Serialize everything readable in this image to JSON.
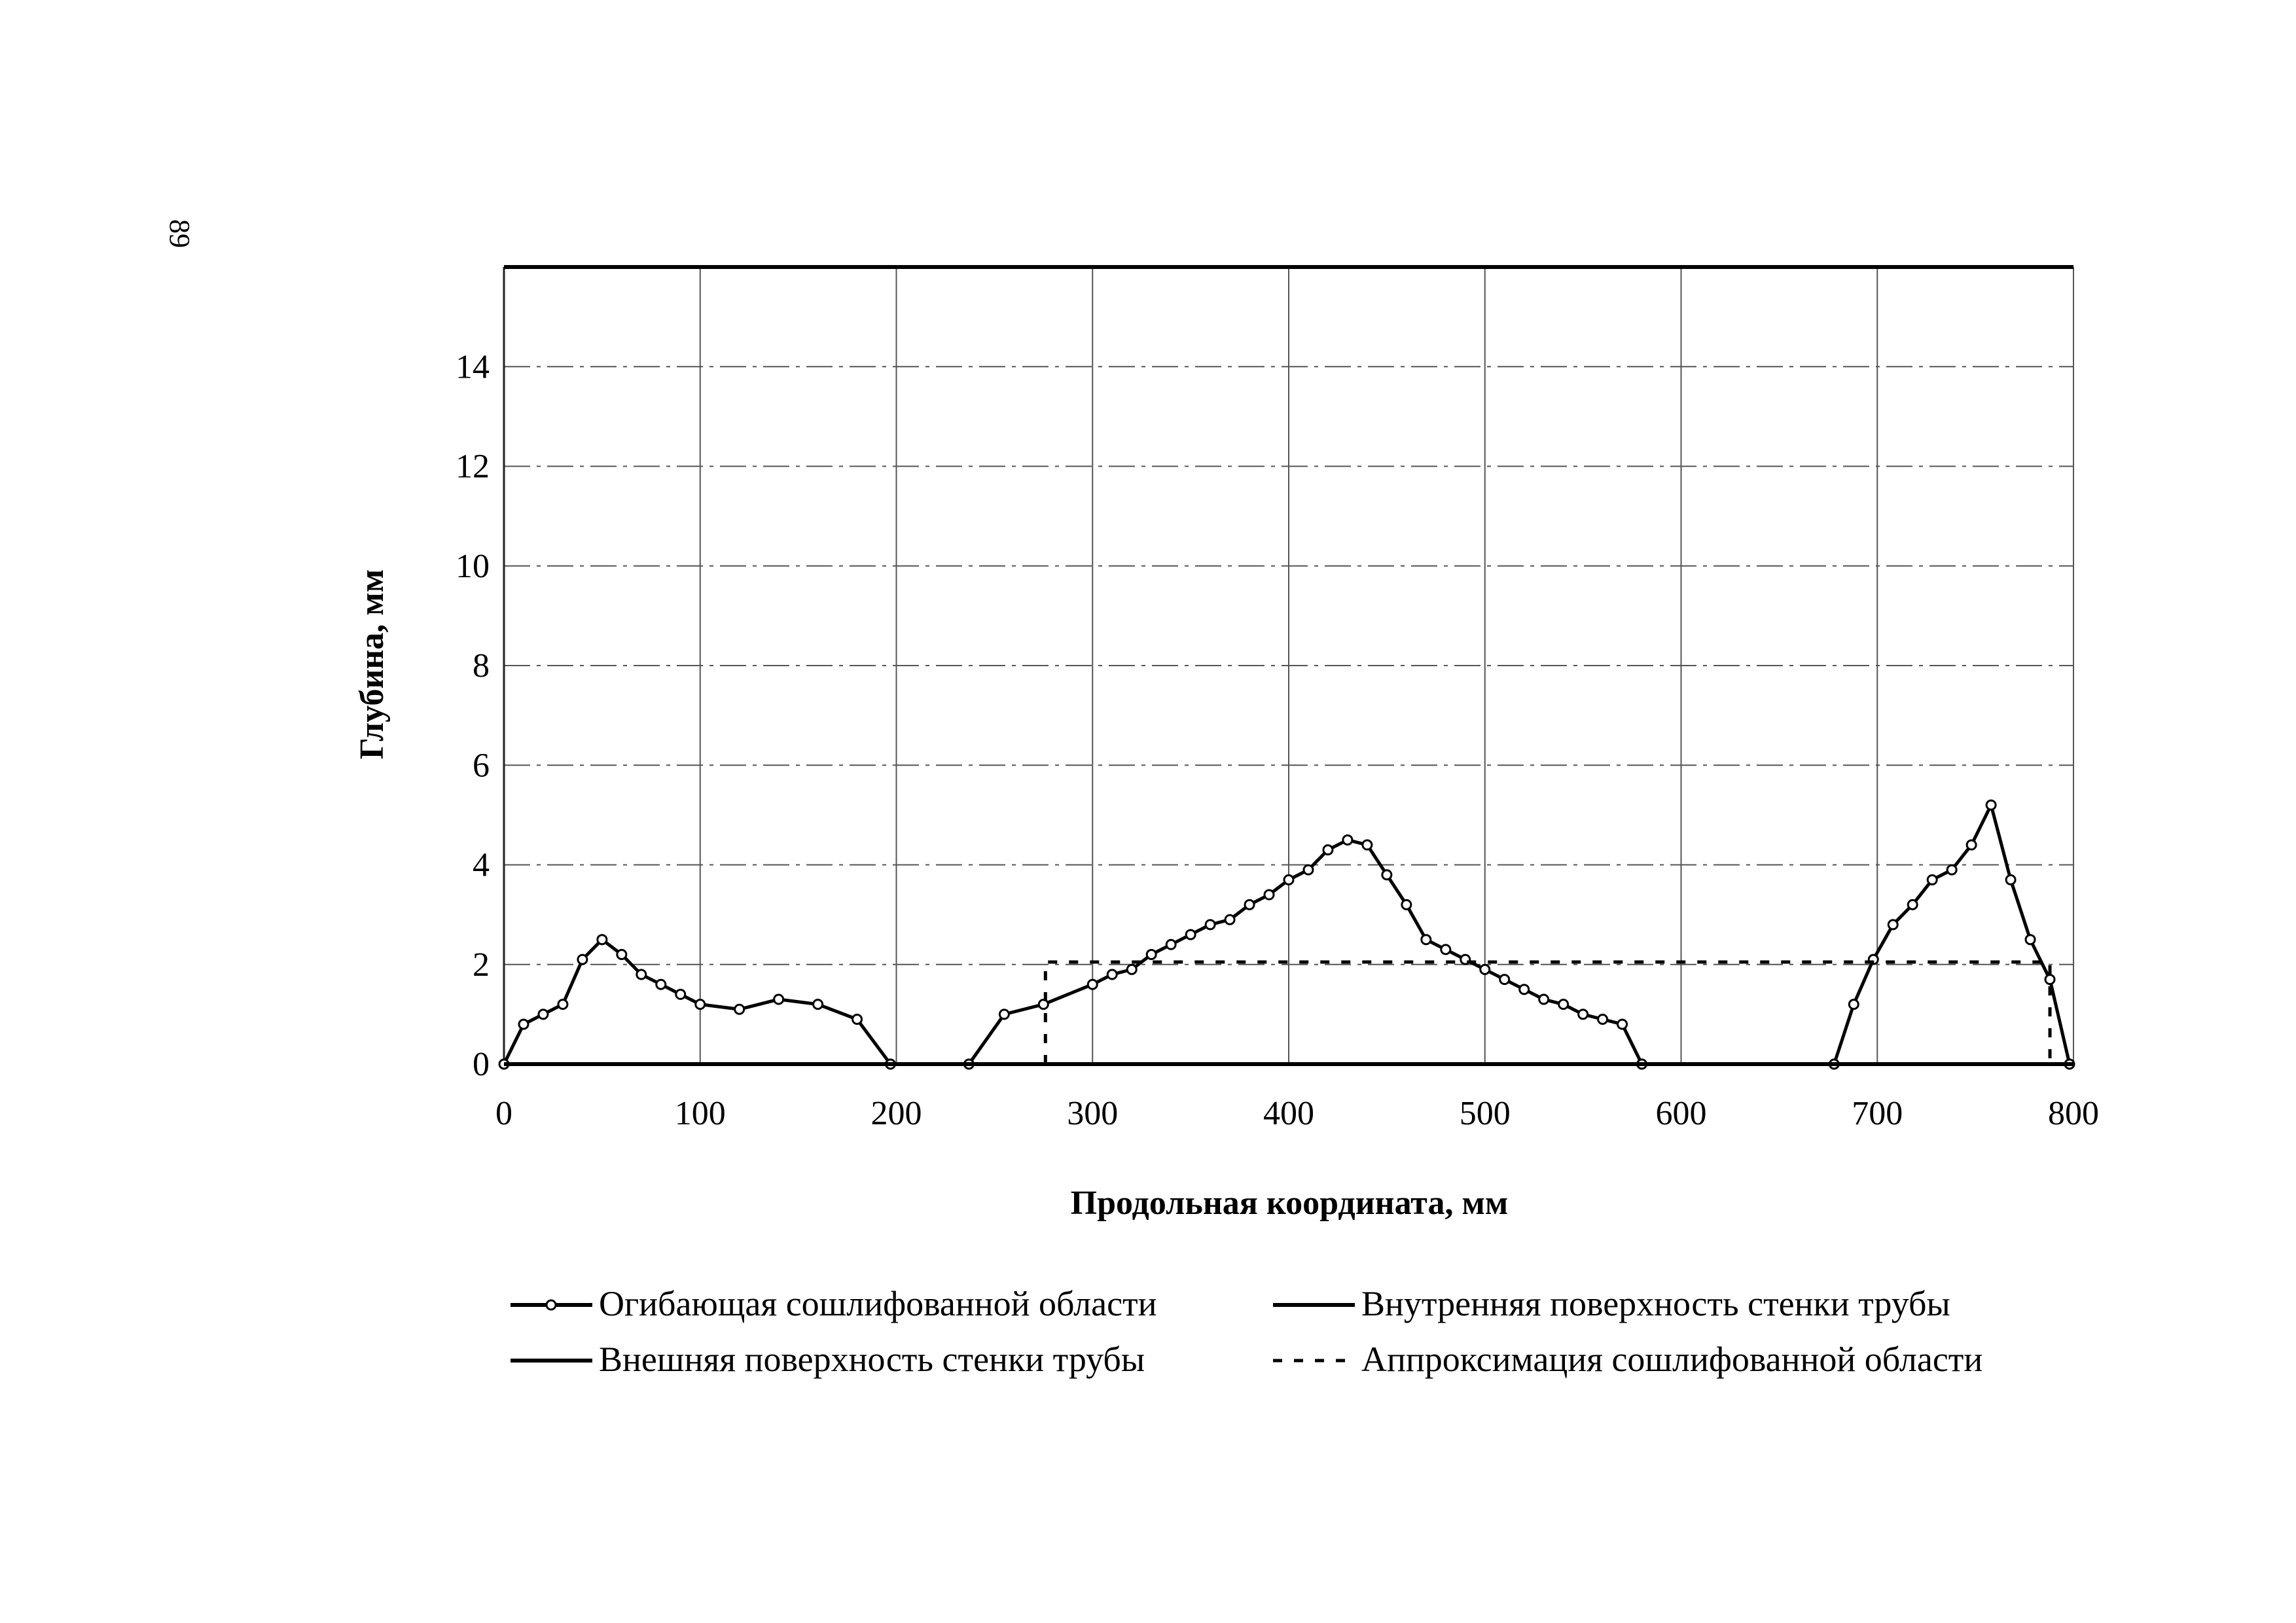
{
  "page_number": "89",
  "chart_data": {
    "type": "line",
    "xlabel": "Продольная координата, мм",
    "ylabel": "Глубина, мм",
    "xlim": [
      0,
      800
    ],
    "ylim": [
      0,
      16
    ],
    "x_ticks": [
      "0",
      "100",
      "200",
      "300",
      "400",
      "500",
      "600",
      "700",
      "800"
    ],
    "y_ticks": [
      "0",
      "2",
      "4",
      "6",
      "8",
      "10",
      "12",
      "14"
    ],
    "grid": true,
    "legend_position": "bottom",
    "series": [
      {
        "name": "Огибающая сошлифованной области",
        "style": "solid-markers",
        "color": "#000000",
        "segments": [
          [
            [
              0,
              0
            ],
            [
              10,
              0.8
            ],
            [
              20,
              1.0
            ],
            [
              30,
              1.2
            ],
            [
              40,
              2.1
            ],
            [
              50,
              2.5
            ],
            [
              60,
              2.2
            ],
            [
              70,
              1.8
            ],
            [
              80,
              1.6
            ],
            [
              90,
              1.4
            ],
            [
              100,
              1.2
            ],
            [
              120,
              1.1
            ],
            [
              140,
              1.3
            ],
            [
              160,
              1.2
            ],
            [
              180,
              0.9
            ],
            [
              197,
              0
            ]
          ],
          [
            [
              237,
              0
            ],
            [
              255,
              1.0
            ],
            [
              275,
              1.2
            ],
            [
              300,
              1.6
            ],
            [
              310,
              1.8
            ],
            [
              320,
              1.9
            ],
            [
              330,
              2.2
            ],
            [
              340,
              2.4
            ],
            [
              350,
              2.6
            ],
            [
              360,
              2.8
            ],
            [
              370,
              2.9
            ],
            [
              380,
              3.2
            ],
            [
              390,
              3.4
            ],
            [
              400,
              3.7
            ],
            [
              410,
              3.9
            ],
            [
              420,
              4.3
            ],
            [
              430,
              4.5
            ],
            [
              440,
              4.4
            ],
            [
              450,
              3.8
            ],
            [
              460,
              3.2
            ],
            [
              470,
              2.5
            ],
            [
              480,
              2.3
            ],
            [
              490,
              2.1
            ],
            [
              500,
              1.9
            ],
            [
              510,
              1.7
            ],
            [
              520,
              1.5
            ],
            [
              530,
              1.3
            ],
            [
              540,
              1.2
            ],
            [
              550,
              1.0
            ],
            [
              560,
              0.9
            ],
            [
              570,
              0.8
            ],
            [
              580,
              0
            ]
          ],
          [
            [
              678,
              0
            ],
            [
              688,
              1.2
            ],
            [
              698,
              2.1
            ],
            [
              708,
              2.8
            ],
            [
              718,
              3.2
            ],
            [
              728,
              3.7
            ],
            [
              738,
              3.9
            ],
            [
              748,
              4.4
            ],
            [
              758,
              5.2
            ],
            [
              768,
              3.7
            ],
            [
              778,
              2.5
            ],
            [
              788,
              1.7
            ],
            [
              798,
              0
            ]
          ]
        ]
      },
      {
        "name": "Внутренняя поверхность стенки трубы",
        "style": "solid",
        "color": "#000000",
        "segments": [
          [
            [
              0,
              0
            ],
            [
              800,
              0
            ]
          ]
        ]
      },
      {
        "name": "Внешняя поверхность стенки трубы",
        "style": "solid",
        "color": "#000000",
        "segments": [
          [
            [
              0,
              16
            ],
            [
              800,
              16
            ]
          ]
        ]
      },
      {
        "name": "Аппроксимация сошлифованной области",
        "style": "dashed",
        "color": "#000000",
        "segments": [
          [
            [
              276,
              0
            ],
            [
              276,
              2.05
            ],
            [
              788,
              2.05
            ],
            [
              788,
              0
            ]
          ]
        ]
      }
    ]
  }
}
